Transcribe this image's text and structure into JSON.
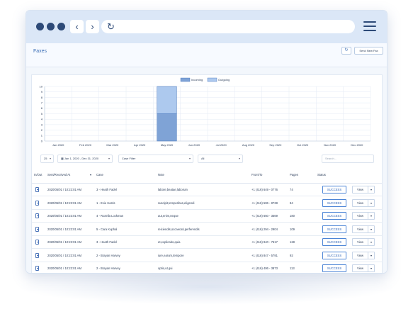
{
  "browser": {
    "back_icon": "chevron-left-icon",
    "forward_icon": "chevron-right-icon",
    "reload_icon": "reload-icon",
    "menu_icon": "hamburger-icon"
  },
  "page": {
    "title": "Faxes",
    "refresh_icon": "refresh-icon",
    "send_label": "Send New Fax"
  },
  "chart_data": {
    "type": "bar",
    "stacked": true,
    "categories": [
      "Jan 2020",
      "Feb 2020",
      "Mar 2020",
      "Apr 2020",
      "May 2020",
      "Jun 2020",
      "Jul 2020",
      "Aug 2020",
      "Sep 2020",
      "Oct 2020",
      "Nov 2020",
      "Dec 2020"
    ],
    "series": [
      {
        "name": "Incoming",
        "color": "#7fa3d6",
        "values": [
          0,
          0,
          0,
          0,
          5,
          0,
          0,
          0,
          0,
          0,
          0,
          0
        ]
      },
      {
        "name": "Outgoing",
        "color": "#adc9ee",
        "values": [
          0,
          0,
          0,
          0,
          5,
          0,
          0,
          0,
          0,
          0,
          0,
          0
        ]
      }
    ],
    "ylim": [
      0,
      10
    ],
    "yticks": [
      "0",
      "1",
      "2",
      "3",
      "4",
      "5",
      "6",
      "7",
      "8",
      "9",
      "10"
    ],
    "grid": true,
    "legend": "top-center"
  },
  "filters": {
    "page_size": "25",
    "date_range": "Jan 1, 2020 - Dec 31, 2020",
    "case_filter": "Case Filter",
    "type_filter": "All",
    "search_placeholder": "Search..."
  },
  "table": {
    "headers": [
      "In/Out",
      "Sent/Received At",
      "Case",
      "Note",
      "From/To",
      "Pages",
      "Status"
    ],
    "rows": [
      {
        "date": "2020/05/01 / 10:23:01 AM",
        "case": "3 - Heath Fadel",
        "note": "labore,beatae,laborum",
        "phone": "+1 (416) 649 - 0776",
        "pages": "74",
        "status": "SUCCESS",
        "action": "View"
      },
      {
        "date": "2020/05/01 / 10:23:01 AM",
        "case": "1 - Evie Harris",
        "note": "suscipit,temporibus,eligendi",
        "phone": "+1 (416) 506 - 8738",
        "pages": "84",
        "status": "SUCCESS",
        "action": "View"
      },
      {
        "date": "2020/05/01 / 10:23:01 AM",
        "case": "4 - Rozella Lockman",
        "note": "aut,enim,neque",
        "phone": "+1 (416) 650 - 3569",
        "pages": "180",
        "status": "SUCCESS",
        "action": "View"
      },
      {
        "date": "2020/05/01 / 10:23:01 AM",
        "case": "5 - Cara Kuphal",
        "note": "reiciendis,occaecati,perferendis",
        "phone": "+1 (416) 294 - 2904",
        "pages": "109",
        "status": "SUCCESS",
        "action": "View"
      },
      {
        "date": "2020/05/01 / 10:23:01 AM",
        "case": "3 - Heath Fadel",
        "note": "et,explicabo,quia",
        "phone": "+1 (416) 940 - 7617",
        "pages": "128",
        "status": "SUCCESS",
        "action": "View"
      },
      {
        "date": "2020/05/01 / 10:23:01 AM",
        "case": "2 - Brayan Harvey",
        "note": "iure,earum,tempore",
        "phone": "+1 (416) 847 - 5791",
        "pages": "92",
        "status": "SUCCESS",
        "action": "View"
      },
      {
        "date": "2020/05/01 / 10:23:01 AM",
        "case": "2 - Brayan Harvey",
        "note": "optio,ut,qui",
        "phone": "+1 (416) 406 - 3873",
        "pages": "113",
        "status": "SUCCESS",
        "action": "View"
      }
    ]
  }
}
